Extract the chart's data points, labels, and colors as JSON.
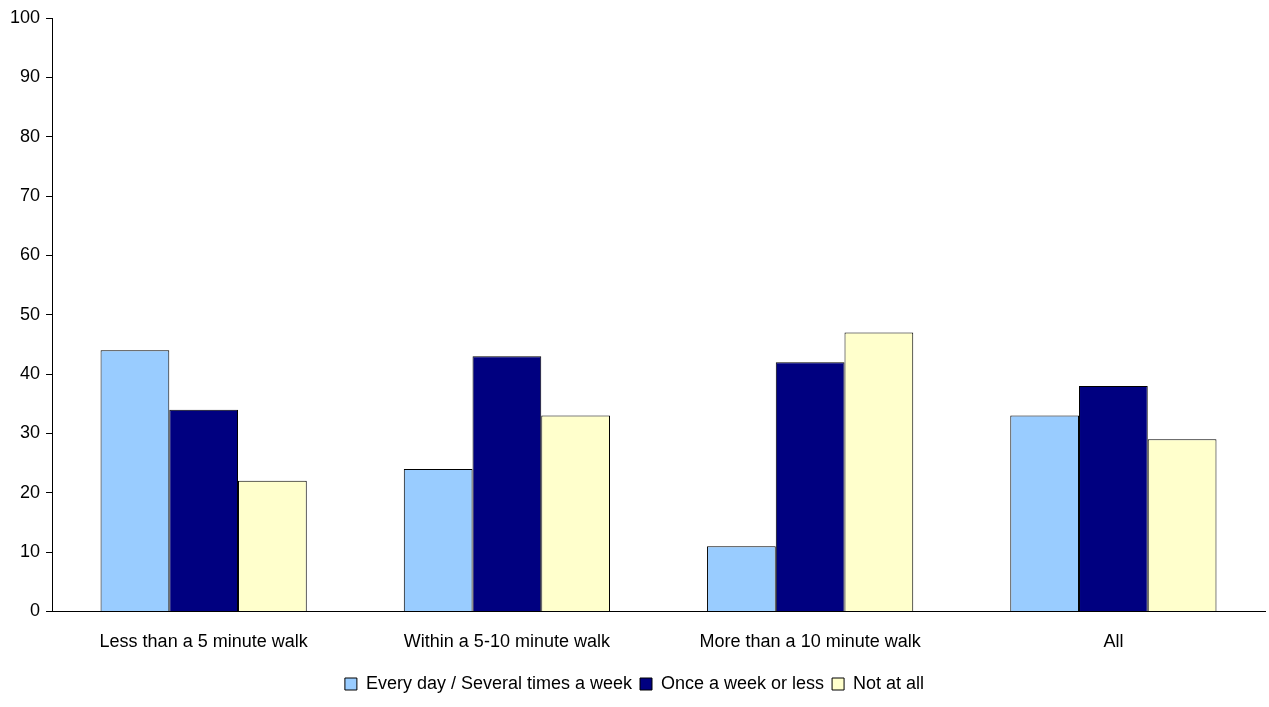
{
  "chart_data": {
    "type": "bar",
    "categories": [
      "Less than a 5 minute walk",
      "Within a 5-10 minute walk",
      "More than a 10 minute walk",
      "All"
    ],
    "series": [
      {
        "name": "Every day / Several times a week",
        "color": "#99ccff",
        "values": [
          44,
          24,
          11,
          33
        ]
      },
      {
        "name": "Once a week or less",
        "color": "#000080",
        "values": [
          34,
          43,
          42,
          38
        ]
      },
      {
        "name": "Not at all",
        "color": "#ffffcc",
        "values": [
          22,
          33,
          47,
          29
        ]
      }
    ],
    "ylim": [
      0,
      100
    ],
    "yticks": [
      0,
      10,
      20,
      30,
      40,
      50,
      60,
      70,
      80,
      90,
      100
    ],
    "grid": false,
    "legend": "bottom"
  }
}
